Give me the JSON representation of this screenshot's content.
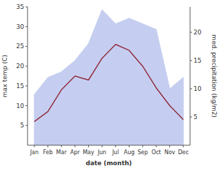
{
  "chart_data": {
    "type": "line",
    "xlabel": "date (month)",
    "ylabel": "max temp (C)",
    "y2label": "med. precipitation (kg/m2)",
    "categories": [
      "Jan",
      "Feb",
      "Mar",
      "Apr",
      "May",
      "Jun",
      "Jul",
      "Aug",
      "Sep",
      "Oct",
      "Nov",
      "Dec"
    ],
    "series": [
      {
        "type": "area",
        "axis": "y2",
        "color": "#c5cef0",
        "values": [
          9.0,
          12.0,
          13.0,
          15.0,
          18.0,
          24.0,
          21.5,
          22.5,
          21.5,
          20.5,
          10.0,
          12.0
        ]
      },
      {
        "type": "line",
        "color": "#922b3e",
        "values": [
          6.0,
          8.5,
          14.0,
          17.5,
          16.5,
          22.0,
          25.5,
          24.0,
          20.0,
          14.5,
          10.0,
          6.5
        ]
      }
    ],
    "ylim": [
      0,
      35
    ],
    "yticks": [
      5,
      10,
      15,
      20,
      25,
      30,
      35
    ],
    "y2lim": [
      0,
      24.5
    ],
    "y2ticks": [
      5,
      10,
      15,
      20
    ],
    "grid": false
  }
}
